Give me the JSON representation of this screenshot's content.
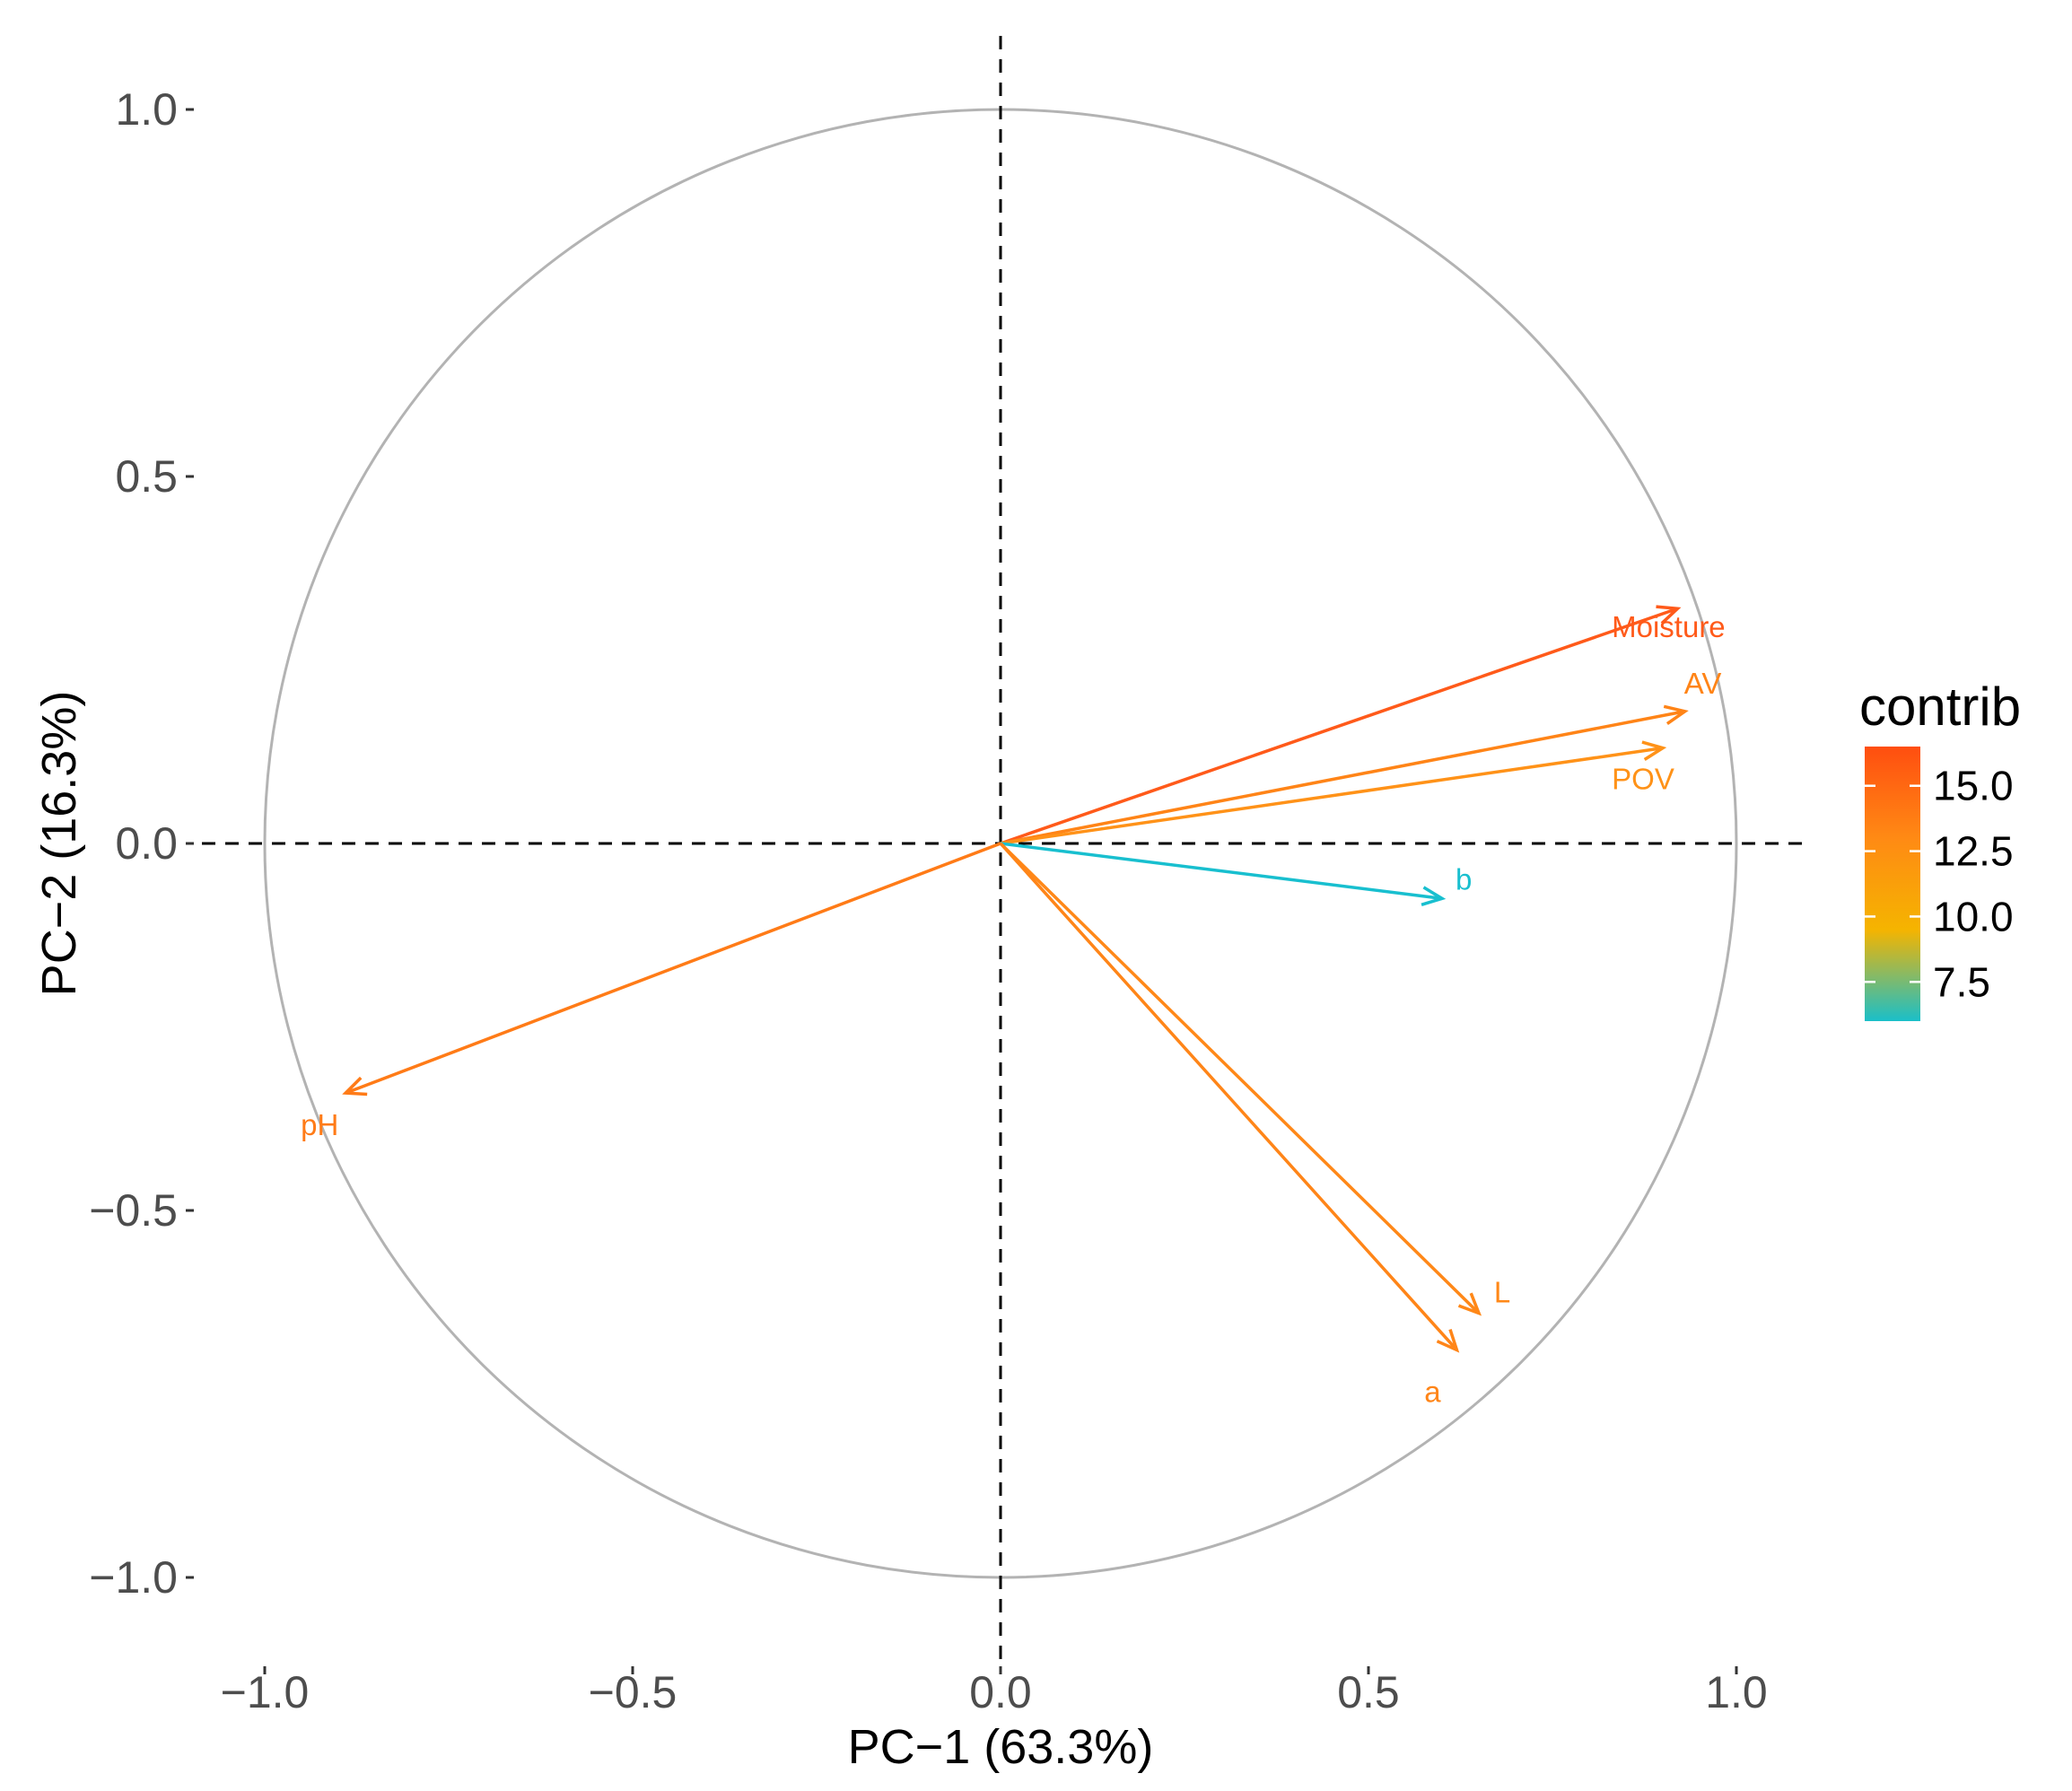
{
  "chart_data": {
    "type": "scatter",
    "subtype": "pca-variable-correlation-circle",
    "xlabel": "PC−1 (63.3%)",
    "ylabel": "PC−2 (16.3%)",
    "xlim": [
      -1.0,
      1.1
    ],
    "ylim": [
      -1.08,
      1.1
    ],
    "x_ticks": [
      -1.0,
      -0.5,
      0.0,
      0.5,
      1.0
    ],
    "x_tick_labels": [
      "−1.0",
      "−0.5",
      "0.0",
      "0.5",
      "1.0"
    ],
    "y_ticks": [
      1.0,
      0.5,
      0.0,
      -0.5,
      -1.0
    ],
    "y_tick_labels": [
      "1.0",
      "0.5",
      "0.0",
      "−0.5",
      "−1.0"
    ],
    "grid": false,
    "unit_circle": true,
    "reference_lines": {
      "x": 0,
      "y": 0,
      "style": "dashed"
    },
    "variables": [
      {
        "name": "Moisture",
        "x": 0.92,
        "y": 0.32,
        "contrib": 16.0,
        "color": "#ff5a1a"
      },
      {
        "name": "AV",
        "x": 0.93,
        "y": 0.18,
        "contrib": 13.6,
        "color": "#ff8417"
      },
      {
        "name": "POV",
        "x": 0.9,
        "y": 0.13,
        "contrib": 12.8,
        "color": "#ff9218"
      },
      {
        "name": "b",
        "x": 0.6,
        "y": -0.075,
        "contrib": 6.0,
        "color": "#18bfcf"
      },
      {
        "name": "pH",
        "x": -0.89,
        "y": -0.34,
        "contrib": 14.3,
        "color": "#ff7b17"
      },
      {
        "name": "L",
        "x": 0.65,
        "y": -0.64,
        "contrib": 13.2,
        "color": "#ff8818"
      },
      {
        "name": "a",
        "x": 0.62,
        "y": -0.69,
        "contrib": 13.5,
        "color": "#ff8518"
      }
    ],
    "legend": {
      "title": "contrib",
      "placement": "right",
      "range": [
        6.0,
        16.5
      ],
      "ticks": [
        15.0,
        12.5,
        10.0,
        7.5
      ],
      "tick_labels": [
        "15.0",
        "12.5",
        "10.0",
        "7.5"
      ],
      "gradient": [
        "#1abfc9",
        "#f5b400",
        "#ff8a14",
        "#ff4e10"
      ]
    }
  }
}
